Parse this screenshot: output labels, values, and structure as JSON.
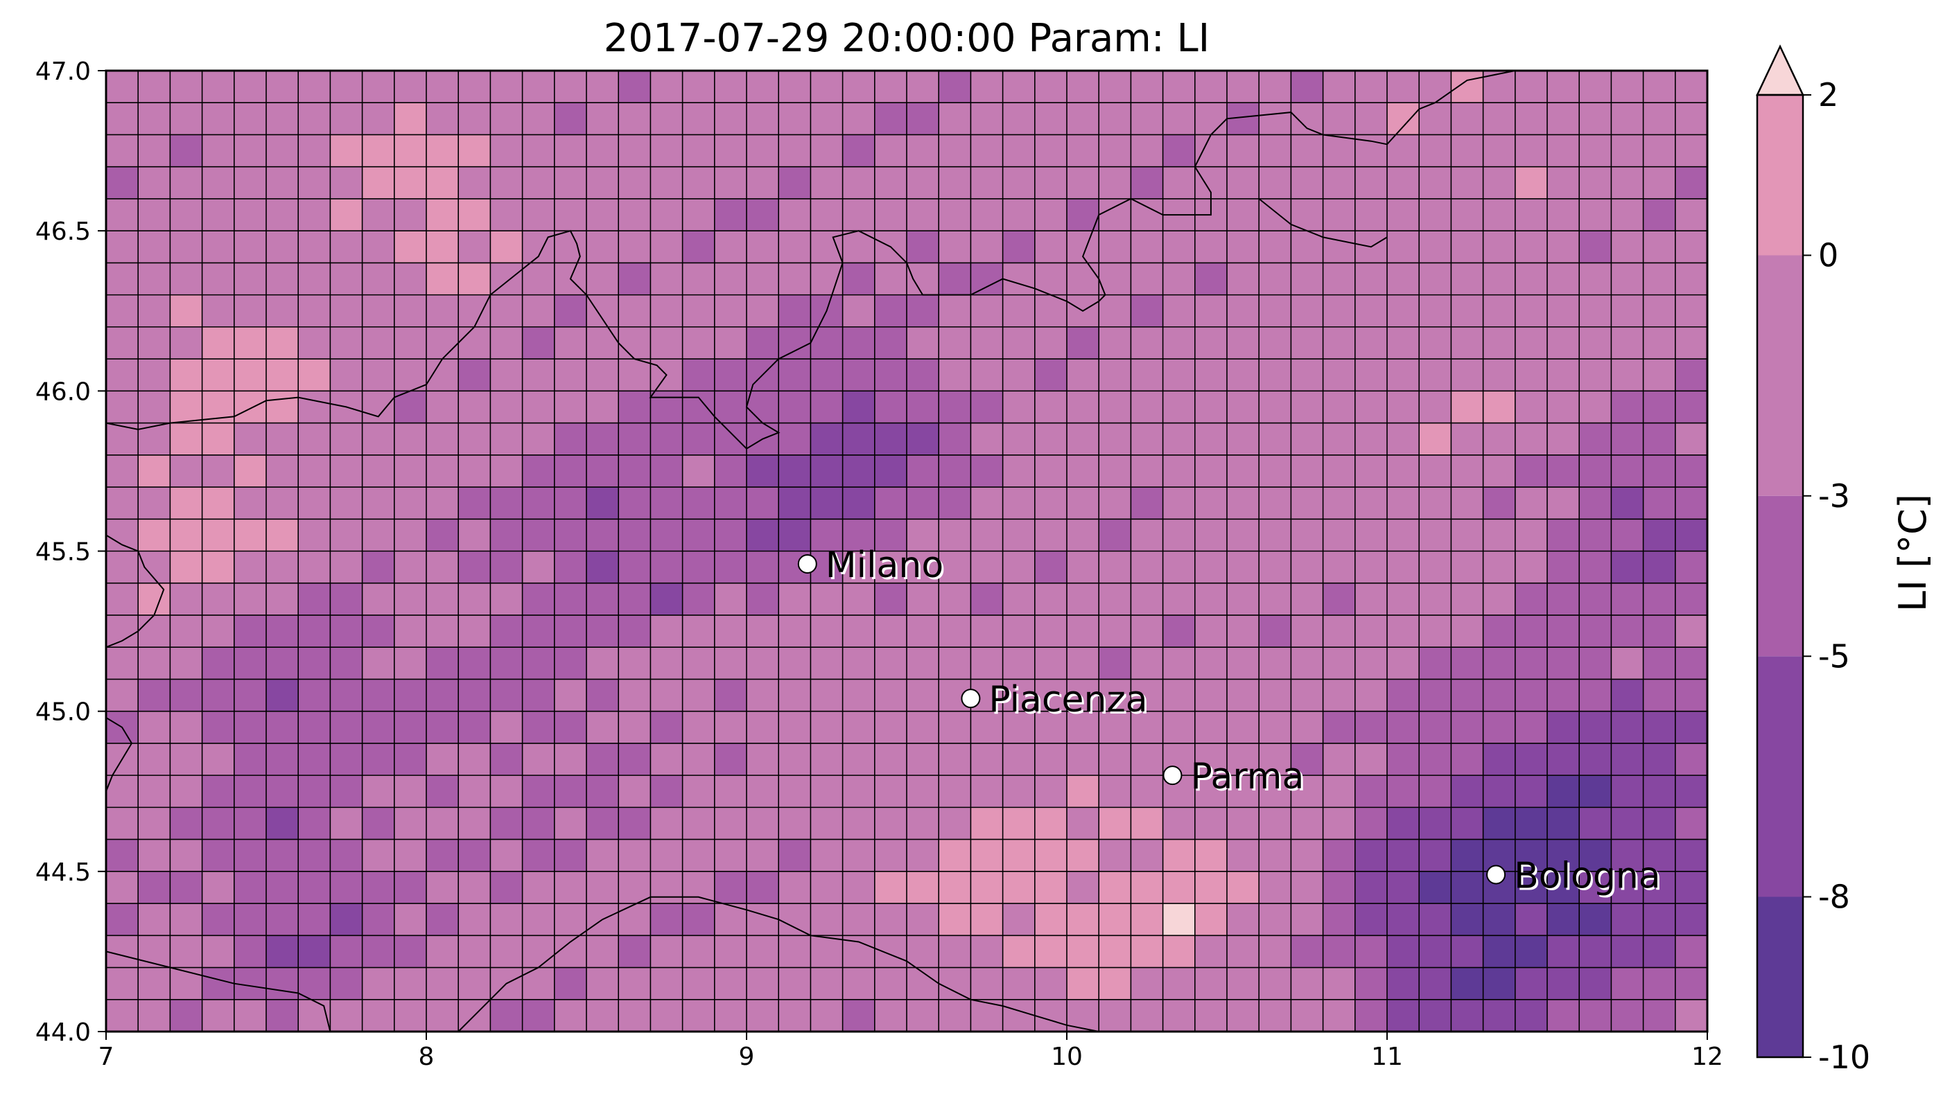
{
  "title": "2017-07-29 20:00:00 Param: LI",
  "map": {
    "xlim": [
      7,
      12
    ],
    "ylim": [
      44.0,
      47.0
    ],
    "x_ticks": [
      {
        "value": 7,
        "label": "7"
      },
      {
        "value": 8,
        "label": "8"
      },
      {
        "value": 9,
        "label": "9"
      },
      {
        "value": 10,
        "label": "10"
      },
      {
        "value": 11,
        "label": "11"
      },
      {
        "value": 12,
        "label": "12"
      }
    ],
    "y_ticks": [
      {
        "value": 44.0,
        "label": "44.0"
      },
      {
        "value": 44.5,
        "label": "44.5"
      },
      {
        "value": 45.0,
        "label": "45.0"
      },
      {
        "value": 45.5,
        "label": "45.5"
      },
      {
        "value": 46.0,
        "label": "46.0"
      },
      {
        "value": 46.5,
        "label": "46.5"
      },
      {
        "value": 47.0,
        "label": "47.0"
      }
    ],
    "grid_cols": 50,
    "grid_rows": 30,
    "cities": [
      {
        "name": "Milano",
        "lon": 9.19,
        "lat": 45.46
      },
      {
        "name": "Piacenza",
        "lon": 9.7,
        "lat": 45.04
      },
      {
        "name": "Parma",
        "lon": 10.33,
        "lat": 44.8
      },
      {
        "name": "Bologna",
        "lon": 11.34,
        "lat": 44.49
      }
    ],
    "hotspots": [
      {
        "lon": 7.3,
        "lat": 45.55,
        "v": 1.2,
        "r": 0.28
      },
      {
        "lon": 7.4,
        "lat": 46.1,
        "v": 1.0,
        "r": 0.3
      },
      {
        "lon": 8.0,
        "lat": 46.6,
        "v": 1.1,
        "r": 0.3
      },
      {
        "lon": 10.3,
        "lat": 44.4,
        "v": 1.3,
        "r": 0.4
      },
      {
        "lon": 9.7,
        "lat": 44.45,
        "v": 0.5,
        "r": 0.3
      },
      {
        "lon": 9.3,
        "lat": 45.75,
        "v": -6.5,
        "r": 0.35
      },
      {
        "lon": 8.6,
        "lat": 45.55,
        "v": -5.0,
        "r": 0.3
      },
      {
        "lon": 7.6,
        "lat": 45.05,
        "v": -5.0,
        "r": 0.3
      },
      {
        "lon": 7.6,
        "lat": 44.4,
        "v": -5.0,
        "r": 0.3
      },
      {
        "lon": 11.6,
        "lat": 44.6,
        "v": -8.0,
        "r": 0.5
      },
      {
        "lon": 11.2,
        "lat": 44.3,
        "v": -6.5,
        "r": 0.35
      },
      {
        "lon": 11.8,
        "lat": 45.6,
        "v": -5.5,
        "r": 0.3
      },
      {
        "lon": 9.5,
        "lat": 45.3,
        "v": -1.5,
        "r": 0.4
      },
      {
        "lon": 10.5,
        "lat": 46.4,
        "v": -2.0,
        "r": 0.5
      },
      {
        "lon": 11.3,
        "lat": 46.8,
        "v": -0.5,
        "r": 0.4
      },
      {
        "lon": 10.7,
        "lat": 45.8,
        "v": -0.8,
        "r": 0.3
      },
      {
        "lon": 11.2,
        "lat": 45.9,
        "v": -0.5,
        "r": 0.25
      },
      {
        "lon": 8.3,
        "lat": 44.9,
        "v": -3.5,
        "r": 0.4
      }
    ],
    "base_value": -2.2
  },
  "colorbar": {
    "title": "LI [°C]",
    "label_values": [
      2,
      0,
      -3,
      -5,
      -8,
      -10
    ],
    "labels": [
      "2",
      "0",
      "-3",
      "-5",
      "-8",
      "-10"
    ],
    "bounds": [
      -10,
      -8,
      -5,
      -3,
      0,
      2
    ],
    "colors": [
      "#5e3a96",
      "#8747a1",
      "#a95ea9",
      "#c47cb3",
      "#e396b7",
      "#f7d6d8"
    ],
    "extend": "max"
  },
  "colors": {
    "grid_line": "#000000",
    "coast_line": "#000000",
    "city_marker_fill": "#ffffff",
    "city_marker_stroke": "#000000"
  }
}
